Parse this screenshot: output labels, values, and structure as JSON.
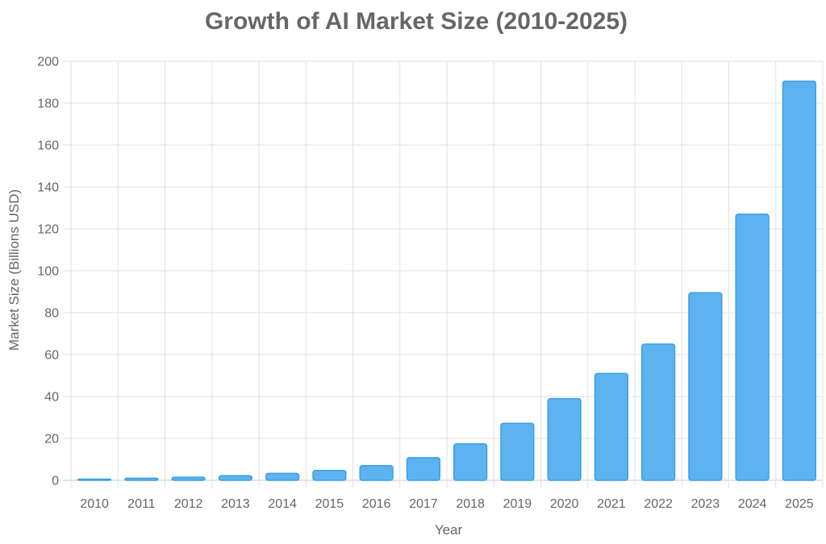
{
  "chart_data": {
    "type": "bar",
    "title": "Growth of AI Market Size (2010-2025)",
    "xlabel": "Year",
    "ylabel": "Market Size (Billions USD)",
    "categories": [
      "2010",
      "2011",
      "2012",
      "2013",
      "2014",
      "2015",
      "2016",
      "2017",
      "2018",
      "2019",
      "2020",
      "2021",
      "2022",
      "2023",
      "2024",
      "2025"
    ],
    "values": [
      0.6,
      1.0,
      1.5,
      2.2,
      3.3,
      4.7,
      7.0,
      10.8,
      17.4,
      27.2,
      39.0,
      51.0,
      65.0,
      89.5,
      127.0,
      190.5
    ],
    "ylim": [
      0,
      200
    ],
    "yticks": [
      0,
      20,
      40,
      60,
      80,
      100,
      120,
      140,
      160,
      180,
      200
    ],
    "grid": true,
    "legend": "none",
    "colors": {
      "bar_fill": "#5db3ef",
      "bar_stroke": "#3a9fe3",
      "text": "#666666"
    }
  }
}
